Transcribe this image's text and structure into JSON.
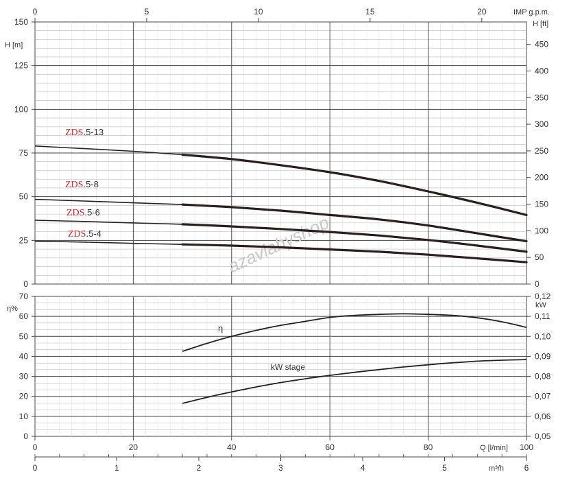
{
  "chart_data": [
    {
      "type": "line",
      "title": "",
      "x_axis_bottom": {
        "label": "Q [l/min]",
        "ticks": [
          0,
          20,
          40,
          60,
          80,
          100
        ],
        "range": [
          0,
          100
        ]
      },
      "x_axis_top": {
        "label": "IMP g.p.m.",
        "ticks": [
          0,
          5,
          10,
          15,
          20
        ],
        "range": [
          0,
          22
        ]
      },
      "x_axis_m3h": {
        "label": "m³/h",
        "ticks": [
          0,
          1,
          2,
          3,
          4,
          5,
          6
        ],
        "range": [
          0,
          6
        ]
      },
      "y_axis_left": {
        "label": "H [m]",
        "ticks": [
          0,
          25,
          50,
          75,
          100,
          125,
          150
        ],
        "range": [
          0,
          150
        ]
      },
      "y_axis_right": {
        "label": "H [ft]",
        "ticks": [
          0,
          50,
          100,
          150,
          200,
          250,
          300,
          350,
          400,
          450
        ],
        "range": [
          0,
          492
        ]
      },
      "grid": true,
      "series": [
        {
          "brand": "ZDS",
          "suffix": ".5-13",
          "x": [
            0,
            10,
            20,
            30,
            40,
            50,
            60,
            70,
            80,
            90,
            100
          ],
          "y": [
            79,
            77.5,
            76,
            74,
            71.5,
            68,
            64,
            59,
            53,
            46.5,
            39.5
          ]
        },
        {
          "brand": "ZDS",
          "suffix": ".5-8",
          "x": [
            0,
            10,
            20,
            30,
            40,
            50,
            60,
            70,
            80,
            90,
            100
          ],
          "y": [
            48.5,
            47.5,
            46.5,
            45.5,
            44,
            42,
            39.5,
            37,
            33.5,
            29,
            24.5
          ]
        },
        {
          "brand": "ZDS",
          "suffix": ".5-6",
          "x": [
            0,
            10,
            20,
            30,
            40,
            50,
            60,
            70,
            80,
            90,
            100
          ],
          "y": [
            36.5,
            35.8,
            35,
            34.2,
            33,
            31.5,
            29.8,
            27.8,
            25.2,
            22,
            18.5
          ]
        },
        {
          "brand": "ZDS",
          "suffix": ".5-4",
          "x": [
            0,
            10,
            20,
            30,
            40,
            50,
            60,
            70,
            80,
            90,
            100
          ],
          "y": [
            24.5,
            24,
            23.3,
            22.7,
            22,
            21,
            19.8,
            18.5,
            16.8,
            14.7,
            12.5
          ]
        }
      ]
    },
    {
      "type": "line",
      "title": "",
      "x_axis": {
        "label": "Q [l/min]",
        "ticks": [
          0,
          20,
          40,
          60,
          80,
          100
        ],
        "range": [
          0,
          100
        ]
      },
      "y_axis_left": {
        "label": "η%",
        "ticks": [
          0,
          10,
          20,
          30,
          40,
          50,
          60,
          70
        ],
        "range": [
          0,
          70
        ]
      },
      "y_axis_right": {
        "label": "kW",
        "ticks": [
          "0,05",
          "0,06",
          "0,07",
          "0,08",
          "0,09",
          "0,10",
          "0,11",
          "0,12"
        ],
        "range": [
          0.05,
          0.12
        ]
      },
      "grid": true,
      "series": [
        {
          "name": "η",
          "axis": "left",
          "x": [
            30,
            35,
            40,
            45,
            50,
            55,
            60,
            65,
            70,
            75,
            80,
            85,
            90,
            95,
            100
          ],
          "y": [
            42.5,
            46.5,
            50,
            53,
            55.5,
            57.5,
            59.5,
            60.5,
            61,
            61.3,
            61,
            60.5,
            59.3,
            57.3,
            54.5
          ]
        },
        {
          "name": "kW stage",
          "axis": "right",
          "x": [
            30,
            35,
            40,
            45,
            50,
            55,
            60,
            65,
            70,
            75,
            80,
            85,
            90,
            95,
            100
          ],
          "y": [
            0.0665,
            0.0695,
            0.0722,
            0.0747,
            0.0769,
            0.0788,
            0.0805,
            0.082,
            0.0834,
            0.0847,
            0.0858,
            0.0868,
            0.0876,
            0.0881,
            0.0884
          ]
        }
      ]
    }
  ],
  "watermark": "azavlahyshop",
  "colors": {
    "curve": "#2a1e1e",
    "grid_major": "#444444",
    "grid_minor": "#bdbdbd",
    "brand": "#d42a2a"
  }
}
